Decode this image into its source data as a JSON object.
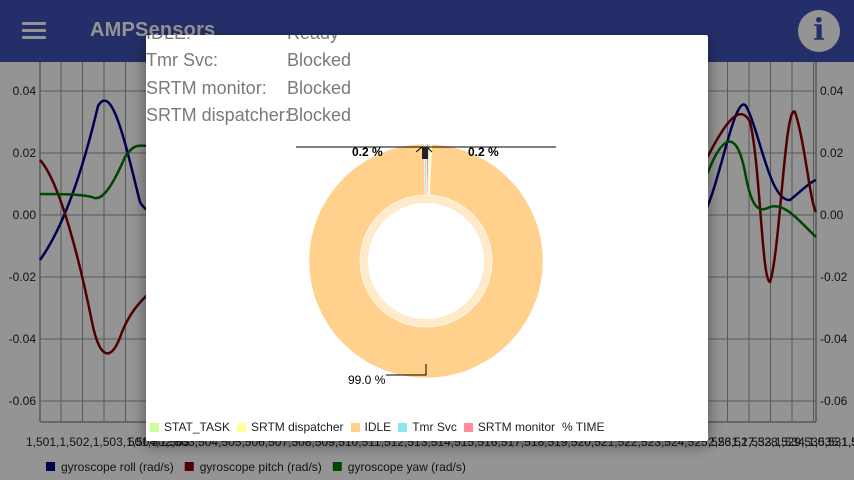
{
  "app": {
    "title": "AMPSensors",
    "menu_icon": "hamburger-menu-icon",
    "info_icon": "info-icon"
  },
  "background_chart": {
    "y_ticks_left": [
      "0.04",
      "0.02",
      "0.00",
      "-0.02",
      "-0.04",
      "-0.06"
    ],
    "y_ticks_right": [
      "0.04",
      "0.02",
      "0.00",
      "-0.02",
      "-0.04",
      "-0.06"
    ],
    "x_ticks_left": [
      "1,501",
      "1,502",
      "1,503",
      "1,504",
      "1,505"
    ],
    "x_ticks_middle": "501,502,503,504,505,506,507,508,509,510,511,512,513,514,515,516,517,518,519,520,521,522,523,524,525,526,527,528,529,530,531,532,533,534,535,536,537",
    "x_ticks_right": [
      "2,531",
      "1,533",
      "1,534",
      "1,535",
      "1,536",
      "1,537"
    ],
    "legend": [
      {
        "name": "gyroscope roll (rad/s)",
        "color": "#00008b"
      },
      {
        "name": "gyroscope pitch (rad/s)",
        "color": "#8b0000"
      },
      {
        "name": "gyroscope yaw (rad/s)",
        "color": "#007700"
      }
    ]
  },
  "dialog": {
    "tasks": [
      {
        "name": "IDLE:",
        "state": "Ready"
      },
      {
        "name": "Tmr Svc:",
        "state": "Blocked"
      },
      {
        "name": "SRTM monitor:",
        "state": "Blocked"
      },
      {
        "name": "SRTM dispatcher:",
        "state": "Blocked"
      }
    ],
    "pie": {
      "slice_labels": {
        "left_small": "0.2 %",
        "right_small": "0.2 %",
        "main": "99.0 %"
      }
    },
    "legend": [
      {
        "label": "STAT_TASK",
        "color": "#ccff99"
      },
      {
        "label": "SRTM dispatcher",
        "color": "#ffff99"
      },
      {
        "label": "IDLE",
        "color": "#ffd18c"
      },
      {
        "label": "Tmr Svc",
        "color": "#8ce6f2"
      },
      {
        "label": "SRTM monitor",
        "color": "#ff8c99"
      }
    ],
    "legend_title": "% TIME"
  },
  "chart_data": {
    "type": "pie",
    "title": "",
    "slices": [
      {
        "label": "STAT_TASK",
        "value": 0.2,
        "color": "#ccff99"
      },
      {
        "label": "SRTM dispatcher",
        "value": 0.2,
        "color": "#ffff99"
      },
      {
        "label": "IDLE",
        "value": 99.0,
        "color": "#ffd18c"
      },
      {
        "label": "Tmr Svc",
        "value": 0.3,
        "color": "#8ce6f2"
      },
      {
        "label": "SRTM monitor",
        "value": 0.3,
        "color": "#ff8c99"
      }
    ],
    "value_unit": "%",
    "legend_title": "% TIME",
    "legend_position": "bottom-left",
    "donut": true
  }
}
